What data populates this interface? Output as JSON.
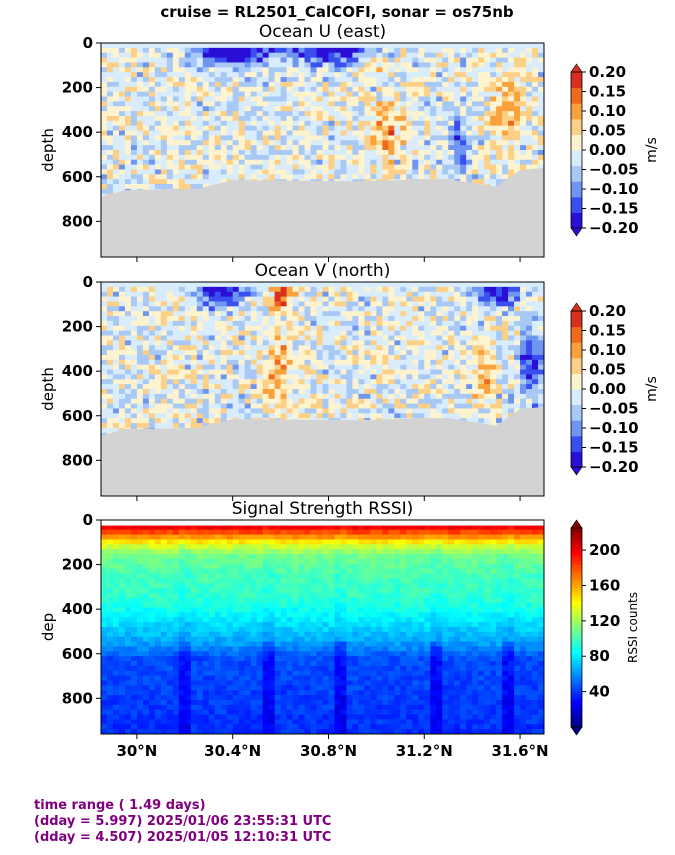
{
  "suptitle": "cruise = RL2501_CalCOFI,  sonar = os75nb",
  "footer": {
    "line1": "time range ( 1.49 days)",
    "line2": "(dday = 5.997) 2025/01/06 23:55:31 UTC",
    "line3": "(dday = 4.507) 2025/01/05 12:10:31 UTC"
  },
  "colors": {
    "seafloor": "#d3d3d3",
    "footer_text": "#800080"
  },
  "chart_data": [
    {
      "type": "heatmap",
      "title": "Ocean U (east)",
      "xlabel": "",
      "ylabel": "depth",
      "xlim": [
        29.85,
        31.7
      ],
      "ylim": [
        960,
        0
      ],
      "yticks": [
        0,
        200,
        400,
        600,
        800
      ],
      "xtick_values": [
        30.0,
        30.4,
        30.8,
        31.2,
        31.6
      ],
      "xticklabels": [
        "30°N",
        "30.4°N",
        "30.8°N",
        "31.2°N",
        "31.6°N"
      ],
      "show_xticklabels": false,
      "colorbar": {
        "label": "m/s",
        "range": [
          -0.2,
          0.2
        ],
        "ticks": [
          0.2,
          0.15,
          0.1,
          0.05,
          0.0,
          -0.05,
          -0.1,
          -0.15,
          -0.2
        ],
        "ticklabels": [
          "0.20",
          "0.15",
          "0.10",
          "0.05",
          "0.00",
          "−0.05",
          "−0.10",
          "−0.15",
          "−0.20"
        ],
        "colors": [
          "#2a0fd6",
          "#3a4ff0",
          "#6e95f0",
          "#a8c8f6",
          "#d8ecfc",
          "#fdf3cf",
          "#fcd187",
          "#f9a23c",
          "#ee6a1d",
          "#d7301f"
        ]
      },
      "features": [
        {
          "lat": 30.4,
          "depth": 40,
          "value": -0.2,
          "wlat": 0.15,
          "wdep": 70
        },
        {
          "lat": 30.8,
          "depth": 40,
          "value": -0.18,
          "wlat": 0.2,
          "wdep": 60
        },
        {
          "lat": 31.0,
          "depth": 100,
          "value": 0.08,
          "wlat": 0.05,
          "wdep": 60
        },
        {
          "lat": 31.05,
          "depth": 400,
          "value": 0.1,
          "wlat": 0.08,
          "wdep": 120
        },
        {
          "lat": 31.55,
          "depth": 300,
          "value": 0.09,
          "wlat": 0.06,
          "wdep": 180
        },
        {
          "lat": 31.35,
          "depth": 450,
          "value": -0.1,
          "wlat": 0.05,
          "wdep": 150
        }
      ],
      "seafloor": [
        [
          29.85,
          690
        ],
        [
          29.95,
          660
        ],
        [
          30.25,
          655
        ],
        [
          30.4,
          615
        ],
        [
          30.9,
          620
        ],
        [
          31.3,
          610
        ],
        [
          31.5,
          645
        ],
        [
          31.6,
          570
        ],
        [
          31.7,
          560
        ]
      ]
    },
    {
      "type": "heatmap",
      "title": "Ocean V (north)",
      "xlabel": "",
      "ylabel": "depth",
      "xlim": [
        29.85,
        31.7
      ],
      "ylim": [
        960,
        0
      ],
      "yticks": [
        0,
        200,
        400,
        600,
        800
      ],
      "xtick_values": [
        30.0,
        30.4,
        30.8,
        31.2,
        31.6
      ],
      "xticklabels": [
        "30°N",
        "30.4°N",
        "30.8°N",
        "31.2°N",
        "31.6°N"
      ],
      "show_xticklabels": false,
      "colorbar": {
        "label": "m/s",
        "range": [
          -0.2,
          0.2
        ],
        "ticks": [
          0.2,
          0.15,
          0.1,
          0.05,
          0.0,
          -0.05,
          -0.1,
          -0.15,
          -0.2
        ],
        "ticklabels": [
          "0.20",
          "0.15",
          "0.10",
          "0.05",
          "0.00",
          "−0.05",
          "−0.10",
          "−0.15",
          "−0.20"
        ],
        "colors": [
          "#2a0fd6",
          "#3a4ff0",
          "#6e95f0",
          "#a8c8f6",
          "#d8ecfc",
          "#fdf3cf",
          "#fcd187",
          "#f9a23c",
          "#ee6a1d",
          "#d7301f"
        ]
      },
      "features": [
        {
          "lat": 30.35,
          "depth": 50,
          "value": -0.2,
          "wlat": 0.1,
          "wdep": 60
        },
        {
          "lat": 30.6,
          "depth": 60,
          "value": 0.2,
          "wlat": 0.04,
          "wdep": 60
        },
        {
          "lat": 30.6,
          "depth": 400,
          "value": 0.1,
          "wlat": 0.06,
          "wdep": 150
        },
        {
          "lat": 31.5,
          "depth": 50,
          "value": -0.2,
          "wlat": 0.1,
          "wdep": 50
        },
        {
          "lat": 31.65,
          "depth": 380,
          "value": -0.18,
          "wlat": 0.05,
          "wdep": 150
        },
        {
          "lat": 31.45,
          "depth": 420,
          "value": 0.1,
          "wlat": 0.04,
          "wdep": 130
        }
      ],
      "seafloor": [
        [
          29.85,
          690
        ],
        [
          29.95,
          660
        ],
        [
          30.25,
          655
        ],
        [
          30.4,
          615
        ],
        [
          30.9,
          620
        ],
        [
          31.3,
          610
        ],
        [
          31.5,
          645
        ],
        [
          31.6,
          570
        ],
        [
          31.7,
          560
        ]
      ]
    },
    {
      "type": "heatmap",
      "title": "Signal Strength RSSI)",
      "xlabel": "",
      "ylabel": "dep",
      "xlim": [
        29.85,
        31.7
      ],
      "ylim": [
        960,
        0
      ],
      "yticks": [
        0,
        200,
        400,
        600,
        800
      ],
      "xtick_values": [
        30.0,
        30.4,
        30.8,
        31.2,
        31.6
      ],
      "xticklabels": [
        "30°N",
        "30.4°N",
        "30.8°N",
        "31.2°N",
        "31.6°N"
      ],
      "show_xticklabels": true,
      "colorbar": {
        "label": "RSSI counts",
        "range": [
          0,
          225
        ],
        "ticks": [
          200,
          160,
          120,
          80,
          40
        ],
        "ticklabels": [
          "200",
          "160",
          "120",
          "80",
          "40"
        ],
        "colormap": "jet"
      },
      "profile": [
        {
          "depth": 30,
          "value": 200
        },
        {
          "depth": 70,
          "value": 170
        },
        {
          "depth": 110,
          "value": 135
        },
        {
          "depth": 160,
          "value": 110
        },
        {
          "depth": 250,
          "value": 100
        },
        {
          "depth": 340,
          "value": 95
        },
        {
          "depth": 420,
          "value": 85
        },
        {
          "depth": 500,
          "value": 72
        },
        {
          "depth": 560,
          "value": 62
        },
        {
          "depth": 620,
          "value": 45
        },
        {
          "depth": 960,
          "value": 38
        }
      ],
      "dark_streaks_lat": [
        30.2,
        30.55,
        30.85,
        31.25,
        31.55
      ]
    }
  ]
}
